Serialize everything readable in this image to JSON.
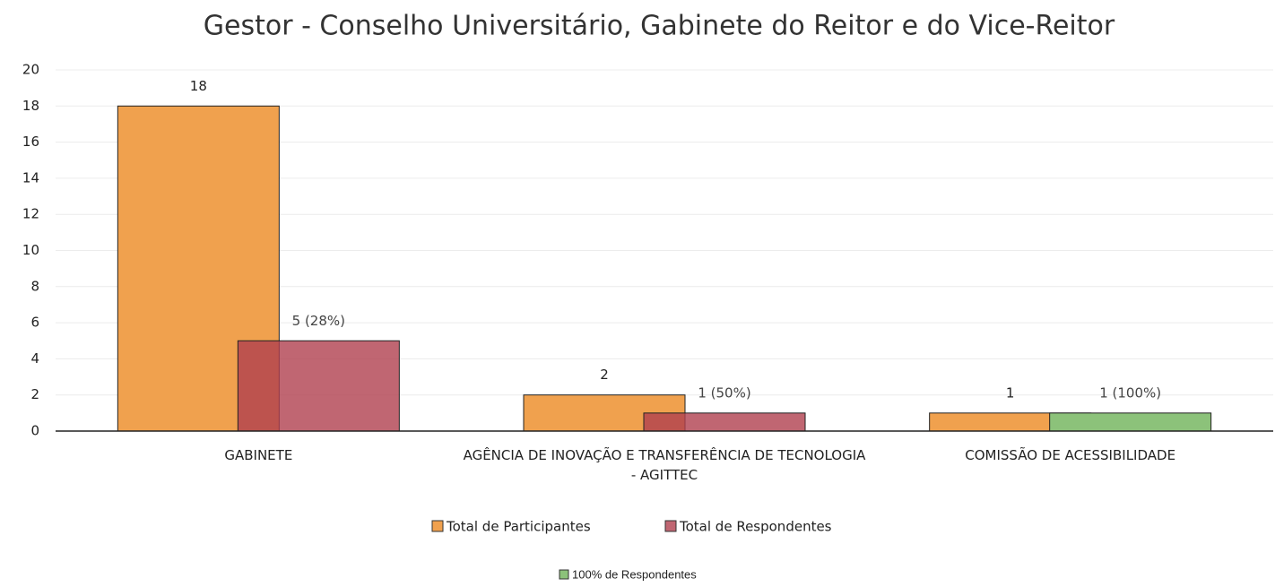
{
  "chart_data": {
    "type": "bar",
    "title": "Gestor - Conselho Universitário, Gabinete do Reitor e do Vice-Reitor",
    "categories": [
      "GABINETE",
      "AGÊNCIA DE INOVAÇÃO E TRANSFERÊNCIA DE TECNOLOGIA - AGITTEC",
      "COMISSÃO DE ACESSIBILIDADE"
    ],
    "series": [
      {
        "name": "Total de Participantes",
        "color": "#f0a14e",
        "values": [
          18,
          2,
          1
        ]
      },
      {
        "name": "Total de Respondentes",
        "color": "#b0404f",
        "values": [
          5,
          1,
          null
        ],
        "value_labels": [
          "5 (28%)",
          "1 (50%)",
          null
        ]
      },
      {
        "name": "100% de Respondentes",
        "color": "#8cc27a",
        "values": [
          null,
          null,
          1
        ],
        "value_labels": [
          null,
          null,
          "1 (100%)"
        ]
      }
    ],
    "ylim": [
      0,
      20
    ],
    "yticks": [
      0,
      2,
      4,
      6,
      8,
      10,
      12,
      14,
      16,
      18,
      20
    ],
    "grid": true
  }
}
